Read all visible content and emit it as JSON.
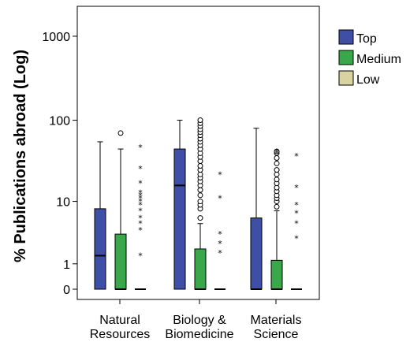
{
  "chart_data": {
    "type": "boxplot",
    "ylabel": "% Publications abroad (Log)",
    "xlabel": "",
    "yscale": "log-like (value+1)",
    "ylim": [
      0,
      1500
    ],
    "yticks": [
      0,
      1,
      10,
      100,
      1000
    ],
    "ytick_labels": [
      "0",
      "1",
      "10",
      "100",
      "1000"
    ],
    "categories": [
      {
        "label_lines": [
          "Natural",
          "Resources"
        ]
      },
      {
        "label_lines": [
          "Biology &",
          "Biomedicine"
        ]
      },
      {
        "label_lines": [
          "Materials",
          "Science"
        ]
      }
    ],
    "legend": {
      "position": "top-right outside plot",
      "entries": [
        {
          "name": "Top",
          "color": "#3f4fa8"
        },
        {
          "name": "Medium",
          "color": "#3aa84a"
        },
        {
          "name": "Low",
          "color": "#d8d3a0"
        }
      ]
    },
    "series": [
      {
        "name": "Top",
        "boxes": [
          {
            "min": 0,
            "q1": 0,
            "median": 1.5,
            "q3": 8,
            "max": 55,
            "outliers": [],
            "extremes": []
          },
          {
            "min": 0,
            "q1": 0,
            "median": 16,
            "q3": 45,
            "max": 100,
            "outliers": [],
            "extremes": []
          },
          {
            "min": 0,
            "q1": 0,
            "median": 0,
            "q3": 6,
            "max": 80,
            "outliers": [],
            "extremes": []
          }
        ]
      },
      {
        "name": "Medium",
        "boxes": [
          {
            "min": 0,
            "q1": 0,
            "median": 0,
            "q3": 3.5,
            "max": 45,
            "outliers": [
              70
            ],
            "extremes": []
          },
          {
            "min": 0,
            "q1": 0,
            "median": 0,
            "q3": 2,
            "max": 5,
            "outliers": [
              6,
              8,
              9,
              10,
              12,
              14,
              16,
              18,
              20,
              22,
              25,
              28,
              32,
              36,
              40,
              45,
              50,
              55,
              60,
              66,
              72,
              78,
              85,
              92,
              100
            ],
            "extremes": []
          },
          {
            "min": 0,
            "q1": 0,
            "median": 0,
            "q3": 1.2,
            "max": 7.5,
            "outliers": [
              8.5,
              10,
              11,
              12,
              13.5,
              15,
              17,
              19,
              22,
              25,
              30,
              35,
              40,
              42
            ],
            "extremes": [
              40,
              42
            ]
          }
        ]
      },
      {
        "name": "Low",
        "boxes": [
          {
            "min": 0,
            "q1": 0,
            "median": 0,
            "q3": 0,
            "max": 0,
            "outliers": [],
            "extremes": [
              1.5,
              4,
              5,
              6,
              7.5,
              9,
              10,
              11,
              12,
              13,
              17,
              26,
              47
            ]
          },
          {
            "min": 0,
            "q1": 0,
            "median": 0,
            "q3": 0,
            "max": 0,
            "outliers": [],
            "extremes": [
              1.7,
              2.5,
              3.5,
              11,
              22
            ]
          },
          {
            "min": 0,
            "q1": 0,
            "median": 0,
            "q3": 0,
            "max": 0,
            "outliers": [],
            "extremes": [
              3,
              5,
              7,
              9,
              15,
              37
            ]
          }
        ]
      }
    ]
  }
}
